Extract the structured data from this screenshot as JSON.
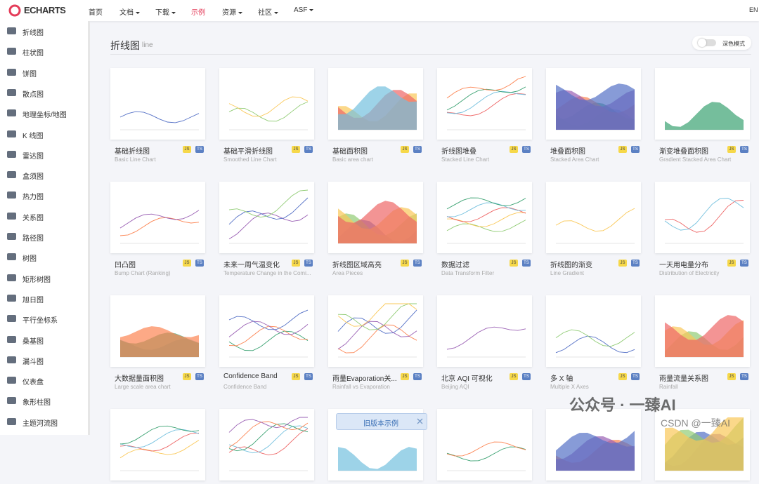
{
  "nav": {
    "logo": "ECHARTS",
    "items": [
      "首页",
      "文档",
      "下载",
      "示例",
      "资源",
      "社区",
      "ASF"
    ],
    "lang": "EN"
  },
  "sidebar": {
    "items": [
      "折线图",
      "柱状图",
      "饼图",
      "散点图",
      "地理坐标/地图",
      "K 线图",
      "雷达图",
      "盒须图",
      "热力图",
      "关系图",
      "路径图",
      "树图",
      "矩形树图",
      "旭日图",
      "平行坐标系",
      "桑基图",
      "漏斗图",
      "仪表盘",
      "象形柱图",
      "主题河流图"
    ]
  },
  "section": {
    "title": "折线图",
    "subtitle": "line",
    "dark_mode": "深色模式"
  },
  "badges": [
    "JS",
    "TS"
  ],
  "cards": [
    {
      "title": "基础折线图",
      "subtitle": "Basic Line Chart"
    },
    {
      "title": "基础平滑折线图",
      "subtitle": "Smoothed Line Chart"
    },
    {
      "title": "基础面积图",
      "subtitle": "Basic area chart"
    },
    {
      "title": "折线图堆叠",
      "subtitle": "Stacked Line Chart"
    },
    {
      "title": "堆叠面积图",
      "subtitle": "Stacked Area Chart"
    },
    {
      "title": "渐变堆叠面积图",
      "subtitle": "Gradient Stacked Area Chart"
    },
    {
      "title": "凹凸图",
      "subtitle": "Bump Chart (Ranking)"
    },
    {
      "title": "未来一周气温变化",
      "subtitle": "Temperature Change in the Comi..."
    },
    {
      "title": "折线图区域高亮",
      "subtitle": "Area Pieces"
    },
    {
      "title": "数据过滤",
      "subtitle": "Data Transform Filter"
    },
    {
      "title": "折线图的渐变",
      "subtitle": "Line Gradient"
    },
    {
      "title": "一天用电量分布",
      "subtitle": "Distribution of Electricity"
    },
    {
      "title": "大数据量面积图",
      "subtitle": "Large scale area chart"
    },
    {
      "title": "Confidence Band",
      "subtitle": "Confidence Band"
    },
    {
      "title": "雨量Evaporation关...",
      "subtitle": "Rainfall vs Evaporation"
    },
    {
      "title": "北京 AQI 可视化",
      "subtitle": "Beijing AQI"
    },
    {
      "title": "多 X 轴",
      "subtitle": "Multiple X Axes"
    },
    {
      "title": "雨量流量关系图",
      "subtitle": "Rainfall"
    }
  ],
  "toast": "旧版本示例",
  "watermark": {
    "main": "公众号 · 一臻AI",
    "sub": "CSDN @一臻AI"
  }
}
